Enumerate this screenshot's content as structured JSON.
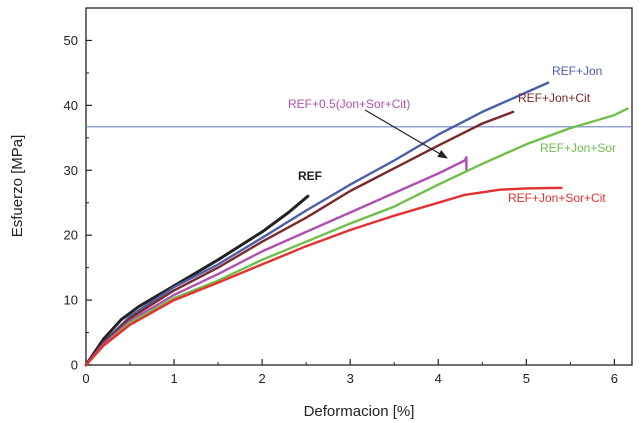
{
  "chart_data": {
    "type": "line",
    "xlabel": "Deformacion [%]",
    "ylabel": "Esfuerzo [MPa]",
    "xlim": [
      0,
      6.2
    ],
    "ylim": [
      0,
      55
    ],
    "x_ticks": [
      0,
      1,
      2,
      3,
      4,
      5,
      6
    ],
    "y_ticks": [
      0,
      10,
      20,
      30,
      40,
      50
    ],
    "grid": false,
    "legend": "inline labels",
    "reference_line": {
      "y": 36.7,
      "color": "#6f86c2"
    },
    "series": [
      {
        "name": "REF",
        "color": "#222222",
        "bold_label": true,
        "points": [
          [
            0,
            0
          ],
          [
            0.2,
            4
          ],
          [
            0.4,
            7
          ],
          [
            0.6,
            9
          ],
          [
            1.0,
            12.2
          ],
          [
            1.5,
            16.2
          ],
          [
            2.0,
            20.5
          ],
          [
            2.3,
            23.5
          ],
          [
            2.52,
            26
          ]
        ]
      },
      {
        "name": "REF+Jon",
        "color": "#4a5eaa",
        "points": [
          [
            0,
            0
          ],
          [
            0.2,
            3.5
          ],
          [
            0.5,
            7.5
          ],
          [
            1.0,
            12
          ],
          [
            1.5,
            15.5
          ],
          [
            2.0,
            19.6
          ],
          [
            2.5,
            23.8
          ],
          [
            3.0,
            27.8
          ],
          [
            3.5,
            31.5
          ],
          [
            4.0,
            35.5
          ],
          [
            4.5,
            39
          ],
          [
            5.0,
            42
          ],
          [
            5.25,
            43.5
          ]
        ]
      },
      {
        "name": "REF+Jon+Cit",
        "color": "#7a2a2a",
        "points": [
          [
            0,
            0
          ],
          [
            0.2,
            3.4
          ],
          [
            0.5,
            7.2
          ],
          [
            1.0,
            11.5
          ],
          [
            1.5,
            15
          ],
          [
            2.0,
            19
          ],
          [
            2.5,
            22.7
          ],
          [
            3.0,
            26.8
          ],
          [
            3.5,
            30.3
          ],
          [
            4.0,
            33.8
          ],
          [
            4.5,
            37.2
          ],
          [
            4.85,
            39
          ]
        ]
      },
      {
        "name": "REF+0.5(Jon+Sor+Cit)",
        "color": "#b050b0",
        "points": [
          [
            0,
            0
          ],
          [
            0.2,
            3.2
          ],
          [
            0.5,
            6.8
          ],
          [
            1.0,
            10.8
          ],
          [
            1.5,
            14
          ],
          [
            2.0,
            17.5
          ],
          [
            2.5,
            20.5
          ],
          [
            3.0,
            23.5
          ],
          [
            3.5,
            26.5
          ],
          [
            4.0,
            29.5
          ],
          [
            4.3,
            31.5
          ],
          [
            4.32,
            32
          ],
          [
            4.32,
            30
          ]
        ]
      },
      {
        "name": "REF+Jon+Sor",
        "color": "#6fbf4a",
        "points": [
          [
            0,
            0
          ],
          [
            0.2,
            3
          ],
          [
            0.5,
            6.5
          ],
          [
            1.0,
            10.3
          ],
          [
            1.5,
            13
          ],
          [
            2.0,
            16.2
          ],
          [
            2.5,
            19
          ],
          [
            3.0,
            21.8
          ],
          [
            3.5,
            24.4
          ],
          [
            4.0,
            27.8
          ],
          [
            4.5,
            31
          ],
          [
            5.0,
            34
          ],
          [
            5.5,
            36.5
          ],
          [
            6.0,
            38.5
          ],
          [
            6.15,
            39.5
          ]
        ]
      },
      {
        "name": "REF+Jon+Sor+Cit",
        "color": "#e53030",
        "points": [
          [
            0,
            0
          ],
          [
            0.2,
            3
          ],
          [
            0.5,
            6.2
          ],
          [
            1.0,
            10
          ],
          [
            1.5,
            12.7
          ],
          [
            2.0,
            15.5
          ],
          [
            2.5,
            18.3
          ],
          [
            3.0,
            20.8
          ],
          [
            3.5,
            23
          ],
          [
            4.0,
            25
          ],
          [
            4.3,
            26.2
          ],
          [
            4.7,
            27
          ],
          [
            5.0,
            27.2
          ],
          [
            5.4,
            27.3
          ]
        ]
      }
    ],
    "labels": [
      {
        "series": "REF+Jon",
        "text": "REF+Jon",
        "color": "#4a5eaa"
      },
      {
        "series": "REF+Jon+Cit",
        "text": "REF+Jon+Cit",
        "color": "#7a2a2a"
      },
      {
        "series": "REF+0.5(Jon+Sor+Cit)",
        "text": "REF+0.5(Jon+Sor+Cit)",
        "color": "#b050b0"
      },
      {
        "series": "REF",
        "text": "REF",
        "color": "#222222"
      },
      {
        "series": "REF+Jon+Sor",
        "text": "REF+Jon+Sor",
        "color": "#6fbf4a"
      },
      {
        "series": "REF+Jon+Sor+Cit",
        "text": "REF+Jon+Sor+Cit",
        "color": "#e53030"
      }
    ]
  }
}
